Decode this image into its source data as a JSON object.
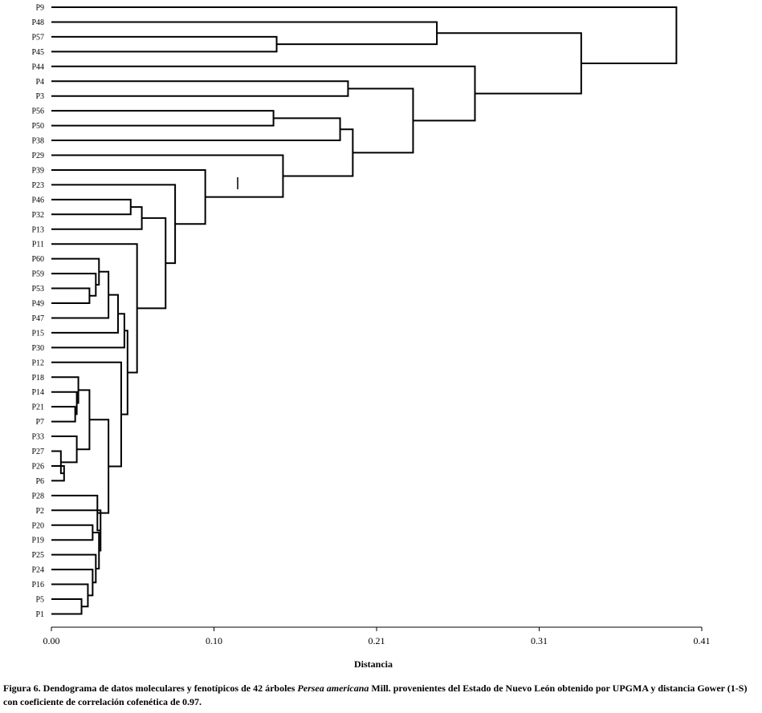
{
  "chart_data": {
    "type": "dendrogram",
    "xlabel": "Distancia",
    "xlim": [
      0,
      0.41
    ],
    "ticks": [
      {
        "value": 0.0,
        "label": "0.00"
      },
      {
        "value": 0.1025,
        "label": "0.10"
      },
      {
        "value": 0.205,
        "label": "0.21"
      },
      {
        "value": 0.3075,
        "label": "0.31"
      },
      {
        "value": 0.41,
        "label": "0.41"
      }
    ],
    "leaves": [
      "P9",
      "P48",
      "P57",
      "P45",
      "P44",
      "P4",
      "P3",
      "P56",
      "P50",
      "P38",
      "P29",
      "P39",
      "P23",
      "P46",
      "P32",
      "P13",
      "P11",
      "P60",
      "P59",
      "P53",
      "P49",
      "P47",
      "P15",
      "P30",
      "P12",
      "P18",
      "P14",
      "P21",
      "P7",
      "P33",
      "P27",
      "P26",
      "P6",
      "P28",
      "P2",
      "P20",
      "P19",
      "P25",
      "P24",
      "P16",
      "P5",
      "P1"
    ],
    "merges": [
      {
        "children": [
          "P57",
          "P45"
        ],
        "height": 0.142
      },
      {
        "children": [
          "P48",
          "C1"
        ],
        "height": 0.243
      },
      {
        "children": [
          "P4",
          "P3"
        ],
        "height": 0.187
      },
      {
        "children": [
          "P56",
          "P50"
        ],
        "height": 0.14
      },
      {
        "children": [
          "C4",
          "P38"
        ],
        "height": 0.182
      },
      {
        "children": [
          "P46",
          "P32"
        ],
        "height": 0.05
      },
      {
        "children": [
          "C6",
          "P13"
        ],
        "height": 0.057
      },
      {
        "children": [
          "P53",
          "P49"
        ],
        "height": 0.024
      },
      {
        "children": [
          "P59",
          "C8"
        ],
        "height": 0.028
      },
      {
        "children": [
          "P60",
          "C9"
        ],
        "height": 0.03
      },
      {
        "children": [
          "C10",
          "P47"
        ],
        "height": 0.036
      },
      {
        "children": [
          "C11",
          "P15"
        ],
        "height": 0.042
      },
      {
        "children": [
          "C12",
          "P30"
        ],
        "height": 0.046
      },
      {
        "children": [
          "P21",
          "P7"
        ],
        "height": 0.015
      },
      {
        "children": [
          "P14",
          "C14"
        ],
        "height": 0.016
      },
      {
        "children": [
          "P18",
          "C15"
        ],
        "height": 0.017
      },
      {
        "children": [
          "P26",
          "P6"
        ],
        "height": 0.008
      },
      {
        "children": [
          "P27",
          "C17"
        ],
        "height": 0.006
      },
      {
        "children": [
          "P33",
          "C18"
        ],
        "height": 0.016
      },
      {
        "children": [
          "C16",
          "C19"
        ],
        "height": 0.024
      },
      {
        "children": [
          "P5",
          "P1"
        ],
        "height": 0.019
      },
      {
        "children": [
          "P16",
          "C21"
        ],
        "height": 0.023
      },
      {
        "children": [
          "P24",
          "C22"
        ],
        "height": 0.026
      },
      {
        "children": [
          "P25",
          "C23"
        ],
        "height": 0.028
      },
      {
        "children": [
          "P20",
          "P19"
        ],
        "height": 0.026
      },
      {
        "children": [
          "C25",
          "C24"
        ],
        "height": 0.03
      },
      {
        "children": [
          "P2",
          "C26"
        ],
        "height": 0.031
      },
      {
        "children": [
          "P28",
          "C27"
        ],
        "height": 0.029
      },
      {
        "children": [
          "C20",
          "C28"
        ],
        "height": 0.036
      },
      {
        "children": [
          "P12",
          "C29"
        ],
        "height": 0.044
      },
      {
        "children": [
          "C13",
          "C30"
        ],
        "height": 0.048
      },
      {
        "children": [
          "P11",
          "C31"
        ],
        "height": 0.054
      },
      {
        "children": [
          "C7",
          "C32"
        ],
        "height": 0.072
      },
      {
        "children": [
          "P23",
          "C33"
        ],
        "height": 0.078
      },
      {
        "children": [
          "P39",
          "C34"
        ],
        "height": 0.097
      },
      {
        "children": [
          "P29",
          "C35"
        ],
        "height": 0.146
      },
      {
        "children": [
          "C5",
          "C36"
        ],
        "height": 0.19
      },
      {
        "children": [
          "C3",
          "C37"
        ],
        "height": 0.228
      },
      {
        "children": [
          "P44",
          "C38"
        ],
        "height": 0.267
      },
      {
        "children": [
          "C2",
          "C39"
        ],
        "height": 0.334
      },
      {
        "children": [
          "P9",
          "C40"
        ],
        "height": 0.394
      }
    ]
  },
  "caption": {
    "prefix": "Figura 6. Dendograma de datos moleculares y fenotípicos de 42 árboles ",
    "species": "Persea americana",
    "suffix": " Mill. provenientes del Estado de Nuevo León obtenido por UPGMA y distancia Gower (1-S) con coeficiente de correlación cofenética de 0.97."
  }
}
